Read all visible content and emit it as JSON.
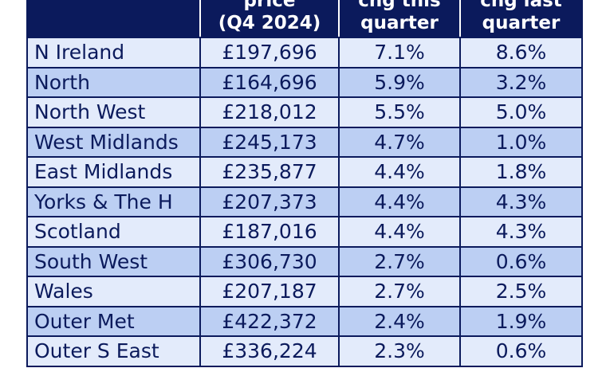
{
  "header": {
    "region_label": "",
    "price_line1": "price",
    "price_line2": "(Q4 2024)",
    "this_line1": "chg this",
    "this_line2": "quarter",
    "last_line1": "chg last",
    "last_line2": "quarter"
  },
  "rows": [
    {
      "region": "N Ireland",
      "price": "£197,696",
      "chg_this": "7.1%",
      "chg_last": "8.6%"
    },
    {
      "region": "North",
      "price": "£164,696",
      "chg_this": "5.9%",
      "chg_last": "3.2%"
    },
    {
      "region": "North West",
      "price": "£218,012",
      "chg_this": "5.5%",
      "chg_last": "5.0%"
    },
    {
      "region": "West Midlands",
      "price": "£245,173",
      "chg_this": "4.7%",
      "chg_last": "1.0%"
    },
    {
      "region": "East Midlands",
      "price": "£235,877",
      "chg_this": "4.4%",
      "chg_last": "1.8%"
    },
    {
      "region": "Yorks & The H",
      "price": "£207,373",
      "chg_this": "4.4%",
      "chg_last": "4.3%"
    },
    {
      "region": "Scotland",
      "price": "£187,016",
      "chg_this": "4.4%",
      "chg_last": "4.3%"
    },
    {
      "region": "South West",
      "price": "£306,730",
      "chg_this": "2.7%",
      "chg_last": "0.6%"
    },
    {
      "region": "Wales",
      "price": "£207,187",
      "chg_this": "2.7%",
      "chg_last": "2.5%"
    },
    {
      "region": "Outer Met",
      "price": "£422,372",
      "chg_this": "2.4%",
      "chg_last": "1.9%"
    },
    {
      "region": "Outer S East",
      "price": "£336,224",
      "chg_this": "2.3%",
      "chg_last": "0.6%"
    }
  ],
  "colors": {
    "header_bg": "#0b1a5c",
    "header_text": "#ffffff",
    "row_light": "#e3ebfb",
    "row_dark": "#bccff3",
    "grid": "#0b1a5c",
    "text": "#0b1a5c"
  }
}
